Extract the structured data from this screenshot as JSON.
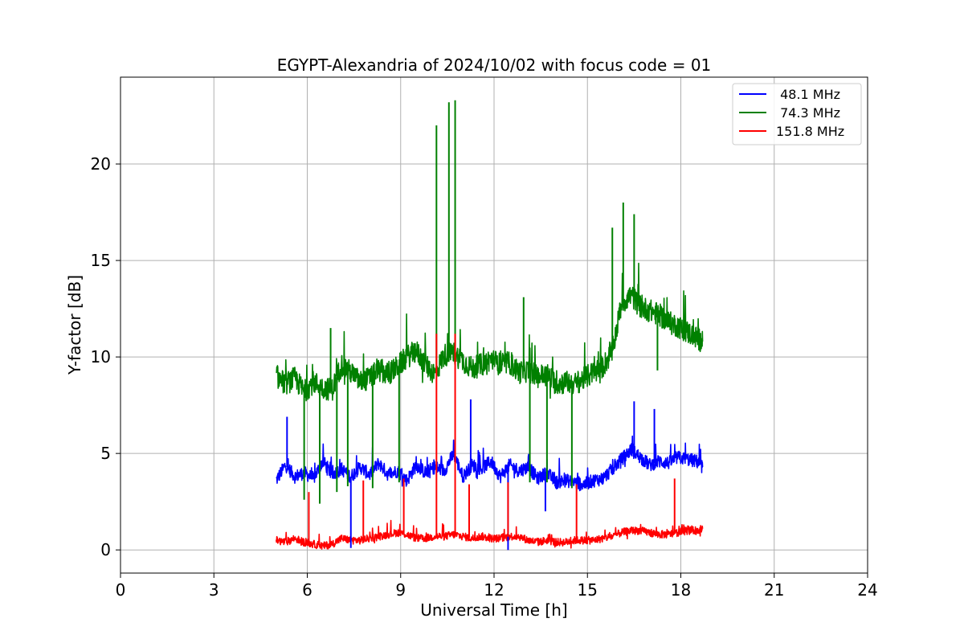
{
  "chart_data": {
    "type": "line",
    "title": "EGYPT-Alexandria of 2024/10/02 with focus code = 01",
    "xlabel": "Universal Time [h]",
    "ylabel": "Y-factor [dB]",
    "xlim": [
      0,
      24
    ],
    "ylim": [
      -1.2,
      24.5
    ],
    "xticks": [
      0,
      3,
      6,
      9,
      12,
      15,
      18,
      21,
      24
    ],
    "yticks": [
      0,
      5,
      10,
      15,
      20
    ],
    "xtick_labels": [
      "0",
      "3",
      "6",
      "9",
      "12",
      "15",
      "18",
      "21",
      "24"
    ],
    "ytick_labels": [
      "0",
      "5",
      "10",
      "15",
      "20"
    ],
    "grid": true,
    "legend_position": "top-right",
    "series": [
      {
        "name": " 48.1 MHz",
        "color": "#0000ff",
        "x": [
          5.0,
          5.3,
          5.6,
          5.9,
          6.2,
          6.5,
          6.8,
          7.1,
          7.4,
          7.7,
          8.0,
          8.3,
          8.6,
          8.9,
          9.2,
          9.5,
          9.8,
          10.1,
          10.4,
          10.7,
          11.0,
          11.3,
          11.6,
          11.9,
          12.2,
          12.5,
          12.8,
          13.1,
          13.4,
          13.7,
          14.0,
          14.3,
          14.6,
          14.9,
          15.2,
          15.5,
          15.8,
          16.1,
          16.4,
          16.7,
          17.0,
          17.3,
          17.6,
          17.9,
          18.2,
          18.5,
          18.7
        ],
        "values": [
          3.6,
          4.4,
          3.8,
          4.0,
          3.7,
          4.6,
          3.9,
          4.2,
          3.8,
          4.3,
          3.9,
          4.5,
          3.9,
          4.1,
          3.6,
          4.4,
          4.0,
          4.3,
          4.1,
          5.0,
          3.8,
          4.4,
          4.2,
          4.6,
          3.8,
          4.4,
          4.1,
          4.3,
          3.7,
          4.0,
          3.5,
          3.6,
          3.5,
          3.4,
          3.6,
          3.7,
          4.2,
          4.7,
          5.2,
          4.8,
          4.4,
          4.6,
          4.5,
          4.8,
          4.7,
          4.6,
          4.3
        ]
      },
      {
        "name": " 74.3 MHz",
        "color": "#008000",
        "x": [
          5.0,
          5.3,
          5.6,
          5.9,
          6.2,
          6.5,
          6.8,
          7.1,
          7.4,
          7.7,
          8.0,
          8.3,
          8.6,
          8.9,
          9.2,
          9.5,
          9.8,
          10.1,
          10.4,
          10.7,
          11.0,
          11.3,
          11.6,
          11.9,
          12.2,
          12.5,
          12.8,
          13.1,
          13.4,
          13.7,
          14.0,
          14.3,
          14.6,
          14.9,
          15.2,
          15.5,
          15.8,
          16.1,
          16.4,
          16.7,
          17.0,
          17.3,
          17.6,
          17.9,
          18.2,
          18.5,
          18.7
        ],
        "values": [
          9.0,
          8.6,
          8.9,
          8.2,
          8.7,
          8.4,
          8.3,
          9.6,
          9.2,
          8.7,
          8.9,
          9.3,
          9.1,
          9.5,
          10.0,
          10.3,
          9.6,
          9.1,
          10.1,
          10.2,
          9.8,
          9.4,
          9.6,
          9.9,
          9.6,
          9.7,
          9.2,
          9.3,
          9.0,
          9.1,
          8.6,
          8.7,
          8.6,
          8.9,
          9.2,
          9.5,
          10.3,
          12.8,
          13.2,
          12.6,
          12.4,
          12.2,
          11.8,
          11.6,
          11.3,
          11.0,
          10.8
        ]
      },
      {
        "name": "151.8 MHz",
        "color": "#ff0000",
        "x": [
          5.0,
          5.3,
          5.6,
          5.9,
          6.2,
          6.5,
          6.8,
          7.1,
          7.4,
          7.7,
          8.0,
          8.3,
          8.6,
          8.9,
          9.2,
          9.5,
          9.8,
          10.1,
          10.4,
          10.7,
          11.0,
          11.3,
          11.6,
          11.9,
          12.2,
          12.5,
          12.8,
          13.1,
          13.4,
          13.7,
          14.0,
          14.3,
          14.6,
          14.9,
          15.2,
          15.5,
          15.8,
          16.1,
          16.4,
          16.7,
          17.0,
          17.3,
          17.6,
          17.9,
          18.2,
          18.5,
          18.7
        ],
        "values": [
          0.5,
          0.4,
          0.6,
          0.4,
          0.3,
          0.2,
          0.3,
          0.6,
          0.5,
          0.5,
          0.6,
          0.7,
          0.8,
          0.9,
          0.8,
          0.6,
          0.6,
          0.7,
          0.7,
          0.8,
          0.7,
          0.6,
          0.7,
          0.6,
          0.6,
          0.7,
          0.7,
          0.5,
          0.4,
          0.5,
          0.4,
          0.4,
          0.5,
          0.5,
          0.5,
          0.6,
          0.7,
          0.9,
          1.0,
          1.0,
          0.9,
          0.8,
          0.8,
          0.9,
          1.0,
          1.0,
          1.1
        ]
      }
    ],
    "spikes": [
      {
        "series": 1,
        "x": 10.15,
        "to": 22.0
      },
      {
        "series": 1,
        "x": 10.75,
        "to": 23.3
      },
      {
        "series": 1,
        "x": 10.55,
        "to": 23.2
      },
      {
        "series": 1,
        "x": 12.95,
        "to": 13.1
      },
      {
        "series": 1,
        "x": 16.15,
        "to": 18.0
      },
      {
        "series": 1,
        "x": 16.5,
        "to": 17.4
      },
      {
        "series": 1,
        "x": 15.8,
        "to": 16.7
      },
      {
        "series": 1,
        "x": 6.75,
        "to": 11.5
      },
      {
        "series": 1,
        "x": 5.9,
        "to": 2.6
      },
      {
        "series": 1,
        "x": 6.4,
        "to": 2.4
      },
      {
        "series": 1,
        "x": 6.95,
        "to": 3.0
      },
      {
        "series": 1,
        "x": 7.3,
        "to": 3.3
      },
      {
        "series": 1,
        "x": 8.1,
        "to": 3.2
      },
      {
        "series": 1,
        "x": 8.95,
        "to": 3.5
      },
      {
        "series": 1,
        "x": 13.15,
        "to": 3.5
      },
      {
        "series": 1,
        "x": 13.7,
        "to": 3.5
      },
      {
        "series": 1,
        "x": 14.5,
        "to": 3.2
      },
      {
        "series": 1,
        "x": 17.25,
        "to": 9.3
      },
      {
        "series": 0,
        "x": 5.35,
        "to": 6.9
      },
      {
        "series": 0,
        "x": 11.25,
        "to": 7.8
      },
      {
        "series": 0,
        "x": 16.5,
        "to": 7.7
      },
      {
        "series": 0,
        "x": 17.15,
        "to": 7.3
      },
      {
        "series": 0,
        "x": 12.45,
        "to": 0.0
      },
      {
        "series": 0,
        "x": 13.65,
        "to": 2.0
      },
      {
        "series": 0,
        "x": 7.4,
        "to": 0.1
      },
      {
        "series": 2,
        "x": 10.15,
        "to": 11.2
      },
      {
        "series": 2,
        "x": 10.75,
        "to": 11.2
      },
      {
        "series": 2,
        "x": 6.05,
        "to": 3.0
      },
      {
        "series": 2,
        "x": 7.8,
        "to": 3.6
      },
      {
        "series": 2,
        "x": 9.1,
        "to": 3.7
      },
      {
        "series": 2,
        "x": 11.2,
        "to": 3.4
      },
      {
        "series": 2,
        "x": 12.45,
        "to": 3.5
      },
      {
        "series": 2,
        "x": 14.65,
        "to": 3.4
      },
      {
        "series": 2,
        "x": 17.8,
        "to": 3.7
      }
    ]
  }
}
